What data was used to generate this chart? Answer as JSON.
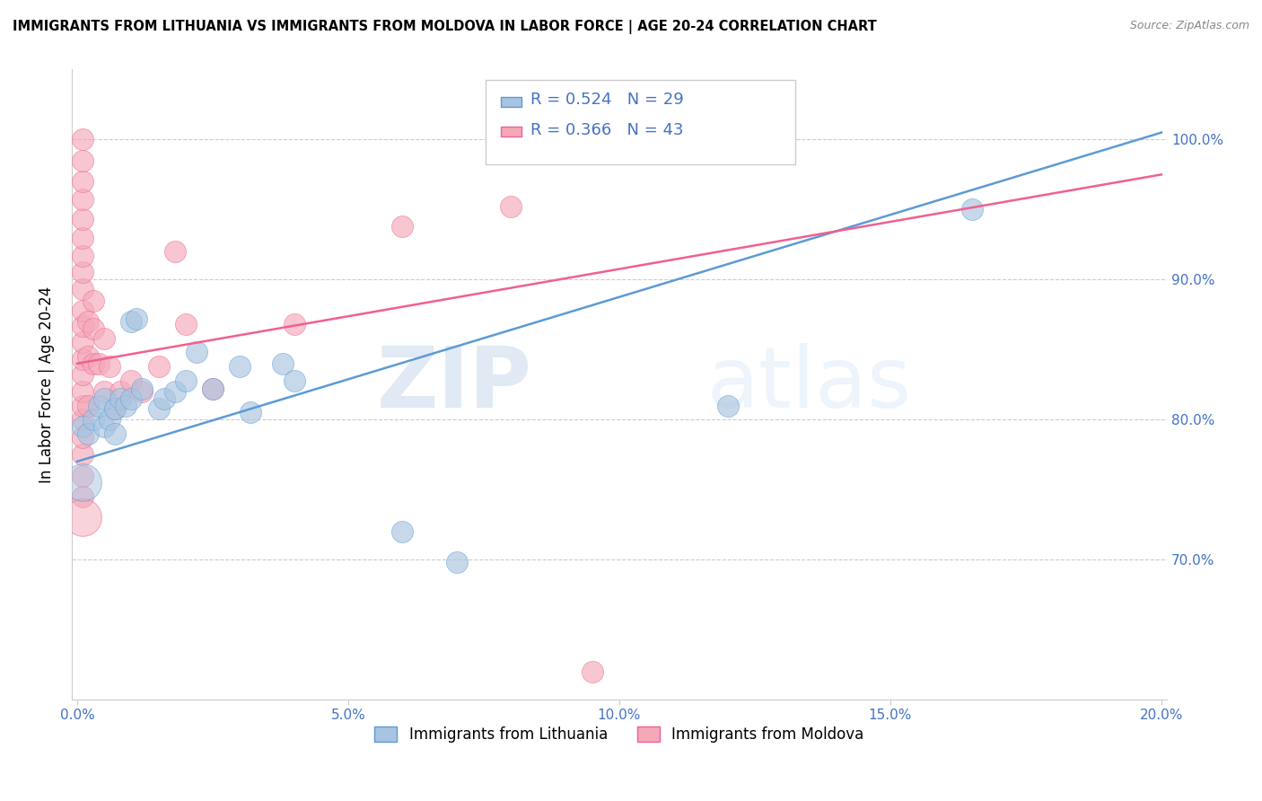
{
  "title": "IMMIGRANTS FROM LITHUANIA VS IMMIGRANTS FROM MOLDOVA IN LABOR FORCE | AGE 20-24 CORRELATION CHART",
  "source": "Source: ZipAtlas.com",
  "ylabel": "In Labor Force | Age 20-24",
  "y_ticks": [
    0.7,
    0.8,
    0.9,
    1.0
  ],
  "y_tick_labels": [
    "70.0%",
    "80.0%",
    "90.0%",
    "100.0%"
  ],
  "xlim": [
    0.0,
    0.2
  ],
  "ylim": [
    0.6,
    1.05
  ],
  "x_ticks": [
    0.0,
    0.05,
    0.1,
    0.15,
    0.2
  ],
  "x_tick_labels": [
    "0.0%",
    "5.0%",
    "10.0%",
    "15.0%",
    "20.0%"
  ],
  "legend_label1": "Immigrants from Lithuania",
  "legend_label2": "Immigrants from Moldova",
  "R1": 0.524,
  "N1": 29,
  "R2": 0.366,
  "N2": 43,
  "color_lithuania": "#a8c4e0",
  "color_moldova": "#f4a8b8",
  "color_line_lithuania": "#5b9bd5",
  "color_line_moldova": "#f06090",
  "color_text_blue": "#4472c4",
  "watermark_zip": "ZIP",
  "watermark_atlas": "atlas",
  "lith_line_x0": 0.0,
  "lith_line_y0": 0.77,
  "lith_line_x1": 0.2,
  "lith_line_y1": 1.005,
  "mold_line_x0": 0.0,
  "mold_line_y0": 0.84,
  "mold_line_x1": 0.2,
  "mold_line_y1": 0.975,
  "lithuania_points": [
    [
      0.001,
      0.795
    ],
    [
      0.002,
      0.79
    ],
    [
      0.003,
      0.8
    ],
    [
      0.004,
      0.81
    ],
    [
      0.005,
      0.795
    ],
    [
      0.005,
      0.815
    ],
    [
      0.006,
      0.8
    ],
    [
      0.007,
      0.79
    ],
    [
      0.007,
      0.808
    ],
    [
      0.008,
      0.815
    ],
    [
      0.009,
      0.81
    ],
    [
      0.01,
      0.815
    ],
    [
      0.01,
      0.87
    ],
    [
      0.011,
      0.872
    ],
    [
      0.012,
      0.822
    ],
    [
      0.015,
      0.808
    ],
    [
      0.016,
      0.815
    ],
    [
      0.018,
      0.82
    ],
    [
      0.02,
      0.828
    ],
    [
      0.022,
      0.848
    ],
    [
      0.025,
      0.822
    ],
    [
      0.03,
      0.838
    ],
    [
      0.032,
      0.805
    ],
    [
      0.038,
      0.84
    ],
    [
      0.04,
      0.828
    ],
    [
      0.06,
      0.72
    ],
    [
      0.07,
      0.698
    ],
    [
      0.12,
      0.81
    ],
    [
      0.165,
      0.95
    ]
  ],
  "moldova_points": [
    [
      0.001,
      0.745
    ],
    [
      0.001,
      0.76
    ],
    [
      0.001,
      0.775
    ],
    [
      0.001,
      0.787
    ],
    [
      0.001,
      0.8
    ],
    [
      0.001,
      0.81
    ],
    [
      0.001,
      0.82
    ],
    [
      0.001,
      0.832
    ],
    [
      0.001,
      0.843
    ],
    [
      0.001,
      0.855
    ],
    [
      0.001,
      0.867
    ],
    [
      0.001,
      0.878
    ],
    [
      0.001,
      0.893
    ],
    [
      0.001,
      0.905
    ],
    [
      0.001,
      0.917
    ],
    [
      0.001,
      0.93
    ],
    [
      0.001,
      0.943
    ],
    [
      0.001,
      0.957
    ],
    [
      0.001,
      0.97
    ],
    [
      0.001,
      0.985
    ],
    [
      0.001,
      1.0
    ],
    [
      0.002,
      0.81
    ],
    [
      0.002,
      0.845
    ],
    [
      0.002,
      0.87
    ],
    [
      0.003,
      0.84
    ],
    [
      0.003,
      0.865
    ],
    [
      0.003,
      0.885
    ],
    [
      0.004,
      0.84
    ],
    [
      0.005,
      0.82
    ],
    [
      0.005,
      0.858
    ],
    [
      0.006,
      0.838
    ],
    [
      0.007,
      0.808
    ],
    [
      0.008,
      0.82
    ],
    [
      0.01,
      0.828
    ],
    [
      0.012,
      0.82
    ],
    [
      0.015,
      0.838
    ],
    [
      0.018,
      0.92
    ],
    [
      0.02,
      0.868
    ],
    [
      0.025,
      0.822
    ],
    [
      0.04,
      0.868
    ],
    [
      0.06,
      0.938
    ],
    [
      0.08,
      0.952
    ],
    [
      0.095,
      0.62
    ]
  ],
  "moldova_big_point": [
    0.001,
    0.72
  ],
  "moldova_low_point": [
    0.095,
    0.62
  ]
}
